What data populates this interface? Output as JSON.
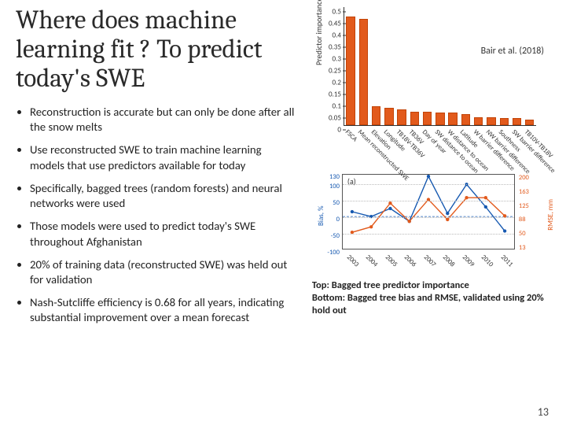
{
  "title": "Where does machine learning fit ? To predict today's SWE",
  "citation": "Bair et al. (2018)",
  "bullets": [
    "Reconstruction is accurate but can only be done after all the snow melts",
    "Use reconstructed SWE to train machine learning models that use predictors available for today",
    "Specifically, bagged trees (random forests) and neural networks were used",
    "Those models were used to predict today's SWE throughout Afghanistan",
    "20% of training data (reconstructed SWE) was held out for validation",
    "Nash-Sutcliffe efficiency is 0.68 for all years, indicating substantial improvement over a mean forecast"
  ],
  "caption_top": "Top: Bagged tree predictor importance",
  "caption_bottom": "Bottom: Bagged tree bias and RMSE, validated using 20% hold out",
  "page_number": "13",
  "bar_chart": {
    "ylabel": "Predictor importance",
    "ylim": [
      0,
      0.5
    ],
    "yticks": [
      0,
      0.05,
      0.1,
      0.15,
      0.2,
      0.25,
      0.3,
      0.35,
      0.4,
      0.45,
      0.5
    ],
    "bar_color": "#e25a1c",
    "bar_border": "#c24408",
    "categories": [
      "FSCA",
      "Mean reconstructed SWE",
      "Elevation",
      "Longitude",
      "TB18V-TB36V",
      "TB36V",
      "Day of year",
      "SW distance to ocean",
      "W distance to ocean",
      "Latitude",
      "W barrier difference",
      "NW barrier difference",
      "Southness",
      "SW barrier difference",
      "TB10V-TB18V"
    ],
    "values": [
      0.46,
      0.45,
      0.078,
      0.073,
      0.067,
      0.057,
      0.055,
      0.052,
      0.052,
      0.045,
      0.032,
      0.032,
      0.028,
      0.028,
      0.024
    ]
  },
  "line_chart": {
    "panel": "(a)",
    "x_years": [
      "2003",
      "2004",
      "2005",
      "2006",
      "2007",
      "2008",
      "2009",
      "2010",
      "2011"
    ],
    "left_label": "Bias, %",
    "left_color": "#1558b0",
    "left_ylim": [
      -100,
      130
    ],
    "left_ticks": [
      -100,
      -50,
      0,
      50,
      100,
      130
    ],
    "right_label": "RMSE, mm",
    "right_color": "#e25a1c",
    "right_ylim": [
      0,
      203
    ],
    "right_ticks": [
      13,
      50,
      88,
      125,
      163,
      200
    ],
    "bias_values": [
      15,
      0,
      25,
      -15,
      125,
      10,
      100,
      30,
      -45
    ],
    "rmse_values": [
      45,
      60,
      125,
      75,
      135,
      80,
      140,
      140,
      90
    ],
    "zero_line": 0
  }
}
